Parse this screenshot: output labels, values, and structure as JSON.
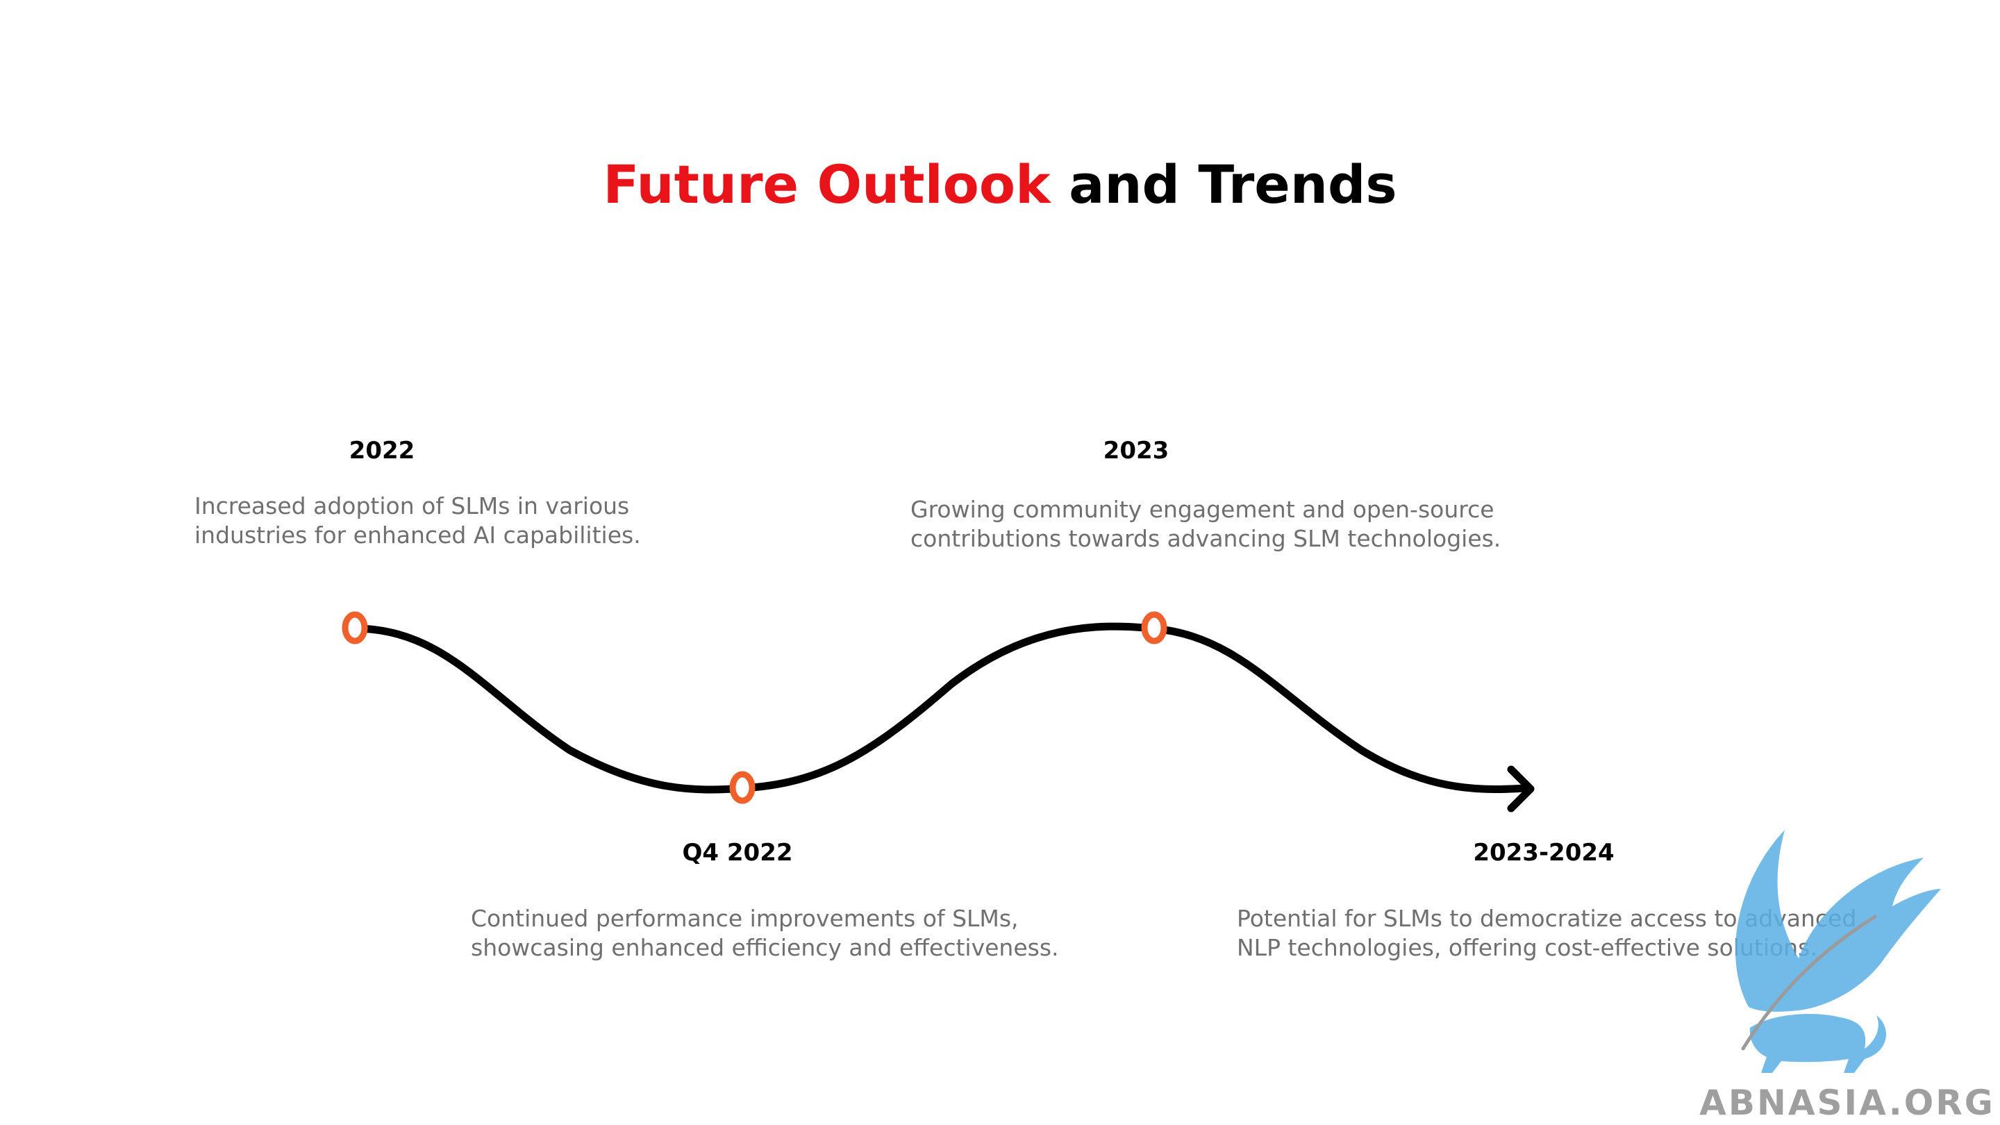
{
  "title": {
    "accent": "Future Outlook",
    "rest": "and Trends"
  },
  "milestones": [
    {
      "year": "2022",
      "lines": [
        "Increased adoption of SLMs in various",
        "industries for enhanced AI capabilities."
      ]
    },
    {
      "year": "Q4 2022",
      "lines": [
        "Continued performance improvements of SLMs,",
        "showcasing enhanced efficiency and effectiveness."
      ]
    },
    {
      "year": "2023",
      "lines": [
        "Growing community engagement and open-source",
        "contributions towards advancing SLM technologies."
      ]
    },
    {
      "year": "2023-2024",
      "lines": [
        "Potential for SLMs to democratize access to advanced",
        "NLP technologies, offering cost-effective solutions."
      ]
    }
  ],
  "watermark": {
    "text": "ABNASIA.ORG"
  },
  "colors": {
    "accent": "#e8141a",
    "marker": "#f0602a",
    "description": "#6f6f6f",
    "watermark": "#5ab0e6"
  }
}
